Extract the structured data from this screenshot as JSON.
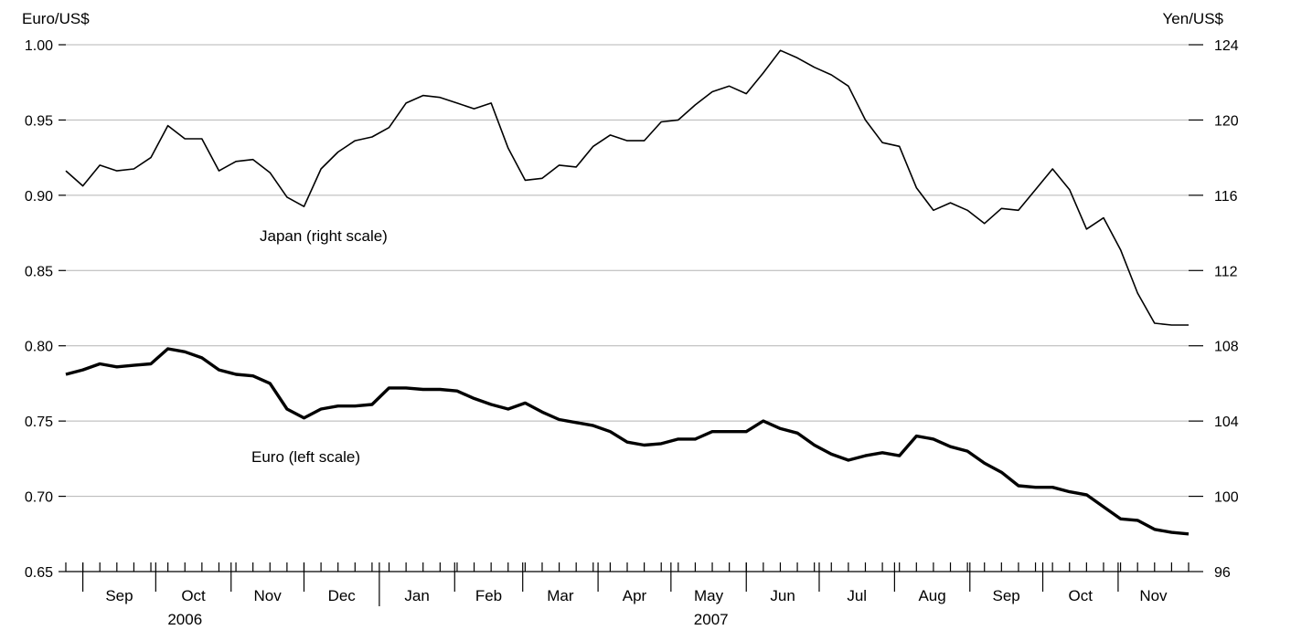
{
  "chart_data": {
    "type": "line",
    "left_axis": {
      "label": "Euro/US$",
      "ylim": [
        0.65,
        1.0
      ],
      "ticks": [
        "0.65",
        "0.70",
        "0.75",
        "0.80",
        "0.85",
        "0.90",
        "0.95",
        "1.00"
      ]
    },
    "right_axis": {
      "label": "Yen/US$",
      "ylim": [
        96,
        124
      ],
      "ticks": [
        "96",
        "100",
        "104",
        "108",
        "112",
        "116",
        "120",
        "124"
      ]
    },
    "x_months": [
      "Sep",
      "Oct",
      "Nov",
      "Dec",
      "Jan",
      "Feb",
      "Mar",
      "Apr",
      "May",
      "Jun",
      "Jul",
      "Aug",
      "Sep",
      "Oct",
      "Nov"
    ],
    "x_years": [
      {
        "label": "2006",
        "months": [
          "Sep",
          "Oct",
          "Nov",
          "Dec"
        ]
      },
      {
        "label": "2007",
        "months": [
          "Jan",
          "Feb",
          "Mar",
          "Apr",
          "May",
          "Jun",
          "Jul",
          "Aug",
          "Sep",
          "Oct",
          "Nov"
        ]
      }
    ],
    "grid": true,
    "x_range": [
      "2006-08-25",
      "2007-11-30"
    ],
    "series": [
      {
        "name": "Japan (right scale)",
        "axis": "right",
        "color": "#000000",
        "x": [
          "2006-08-25",
          "2006-09-01",
          "2006-09-08",
          "2006-09-15",
          "2006-09-22",
          "2006-09-29",
          "2006-10-06",
          "2006-10-13",
          "2006-10-20",
          "2006-10-27",
          "2006-11-03",
          "2006-11-10",
          "2006-11-17",
          "2006-11-24",
          "2006-12-01",
          "2006-12-08",
          "2006-12-15",
          "2006-12-22",
          "2006-12-29",
          "2007-01-05",
          "2007-01-12",
          "2007-01-19",
          "2007-01-26",
          "2007-02-02",
          "2007-02-09",
          "2007-02-16",
          "2007-02-23",
          "2007-03-02",
          "2007-03-09",
          "2007-03-16",
          "2007-03-23",
          "2007-03-30",
          "2007-04-06",
          "2007-04-13",
          "2007-04-20",
          "2007-04-27",
          "2007-05-04",
          "2007-05-11",
          "2007-05-18",
          "2007-05-25",
          "2007-06-01",
          "2007-06-08",
          "2007-06-15",
          "2007-06-22",
          "2007-06-29",
          "2007-07-06",
          "2007-07-13",
          "2007-07-20",
          "2007-07-27",
          "2007-08-03",
          "2007-08-10",
          "2007-08-17",
          "2007-08-24",
          "2007-08-31",
          "2007-09-07",
          "2007-09-14",
          "2007-09-21",
          "2007-09-28",
          "2007-10-05",
          "2007-10-12",
          "2007-10-19",
          "2007-10-26",
          "2007-11-02",
          "2007-11-09",
          "2007-11-16",
          "2007-11-23",
          "2007-11-30"
        ],
        "values": [
          117.3,
          116.5,
          117.6,
          117.3,
          117.4,
          118.0,
          119.7,
          119.0,
          119.0,
          117.3,
          117.8,
          117.9,
          117.2,
          115.9,
          115.4,
          117.4,
          118.3,
          118.9,
          119.1,
          119.6,
          120.9,
          121.3,
          121.2,
          120.9,
          120.6,
          120.9,
          118.5,
          116.8,
          116.9,
          117.6,
          117.5,
          118.6,
          119.2,
          118.9,
          118.9,
          119.9,
          120.0,
          120.8,
          121.5,
          121.8,
          121.4,
          122.5,
          123.7,
          123.3,
          122.8,
          122.4,
          121.8,
          120.0,
          118.8,
          118.6,
          116.4,
          115.2,
          115.6,
          115.2,
          114.5,
          115.3,
          115.2,
          116.3,
          117.4,
          116.3,
          114.2,
          114.8,
          113.1,
          110.8,
          109.2,
          109.1,
          109.1
        ]
      },
      {
        "name": "Euro (left scale)",
        "axis": "left",
        "color": "#000000",
        "x": [
          "2006-08-25",
          "2006-09-01",
          "2006-09-08",
          "2006-09-15",
          "2006-09-22",
          "2006-09-29",
          "2006-10-06",
          "2006-10-13",
          "2006-10-20",
          "2006-10-27",
          "2006-11-03",
          "2006-11-10",
          "2006-11-17",
          "2006-11-24",
          "2006-12-01",
          "2006-12-08",
          "2006-12-15",
          "2006-12-22",
          "2006-12-29",
          "2007-01-05",
          "2007-01-12",
          "2007-01-19",
          "2007-01-26",
          "2007-02-02",
          "2007-02-09",
          "2007-02-16",
          "2007-02-23",
          "2007-03-02",
          "2007-03-09",
          "2007-03-16",
          "2007-03-23",
          "2007-03-30",
          "2007-04-06",
          "2007-04-13",
          "2007-04-20",
          "2007-04-27",
          "2007-05-04",
          "2007-05-11",
          "2007-05-18",
          "2007-05-25",
          "2007-06-01",
          "2007-06-08",
          "2007-06-15",
          "2007-06-22",
          "2007-06-29",
          "2007-07-06",
          "2007-07-13",
          "2007-07-20",
          "2007-07-27",
          "2007-08-03",
          "2007-08-10",
          "2007-08-17",
          "2007-08-24",
          "2007-08-31",
          "2007-09-07",
          "2007-09-14",
          "2007-09-21",
          "2007-09-28",
          "2007-10-05",
          "2007-10-12",
          "2007-10-19",
          "2007-10-26",
          "2007-11-02",
          "2007-11-09",
          "2007-11-16",
          "2007-11-23",
          "2007-11-30"
        ],
        "values": [
          0.781,
          0.784,
          0.788,
          0.786,
          0.787,
          0.788,
          0.798,
          0.796,
          0.792,
          0.784,
          0.781,
          0.78,
          0.775,
          0.758,
          0.752,
          0.758,
          0.76,
          0.76,
          0.761,
          0.772,
          0.772,
          0.771,
          0.771,
          0.77,
          0.765,
          0.761,
          0.758,
          0.762,
          0.756,
          0.751,
          0.749,
          0.747,
          0.743,
          0.736,
          0.734,
          0.735,
          0.738,
          0.738,
          0.743,
          0.743,
          0.743,
          0.75,
          0.745,
          0.742,
          0.734,
          0.728,
          0.724,
          0.727,
          0.729,
          0.727,
          0.74,
          0.738,
          0.733,
          0.73,
          0.722,
          0.716,
          0.707,
          0.706,
          0.706,
          0.703,
          0.701,
          0.693,
          0.685,
          0.684,
          0.678,
          0.676,
          0.675
        ]
      }
    ]
  }
}
